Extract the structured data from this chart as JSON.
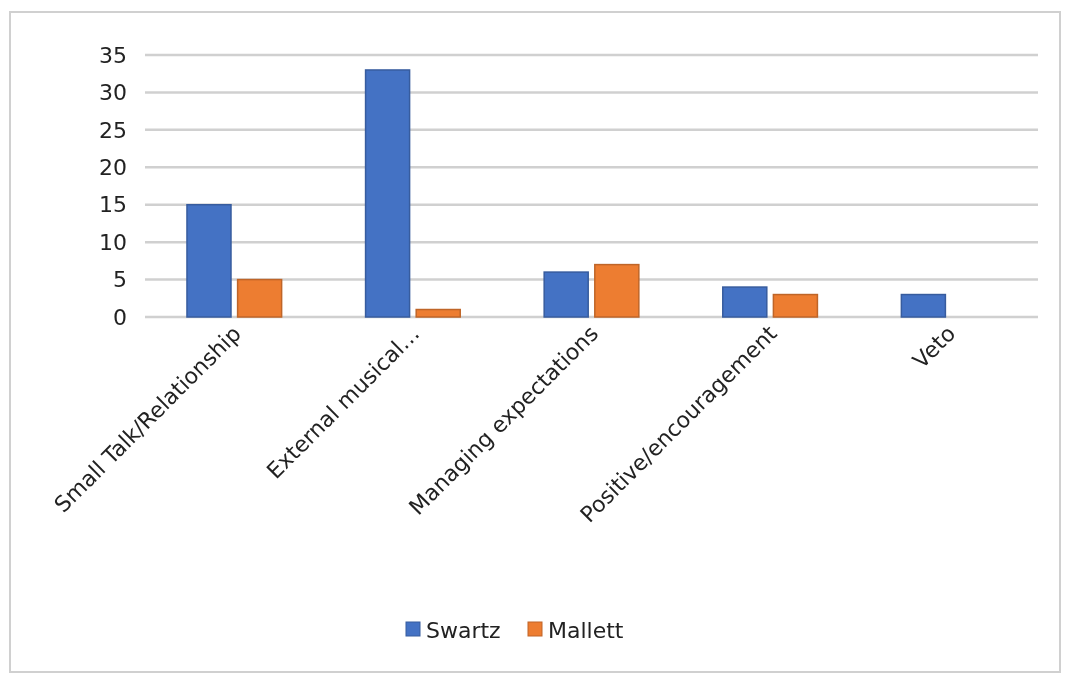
{
  "chart_data": {
    "type": "bar",
    "categories": [
      "Small Talk/Relationship",
      "External  musical…",
      "Managing expectations",
      "Positive/encouragement",
      "Veto"
    ],
    "series": [
      {
        "name": "Swartz",
        "color": "#4472c4",
        "values": [
          15,
          33,
          6,
          4,
          3
        ]
      },
      {
        "name": "Mallett",
        "color": "#ed7d31",
        "values": [
          5,
          1,
          7,
          3,
          null
        ]
      }
    ],
    "ylim": [
      0,
      35
    ],
    "yticks": [
      0,
      5,
      10,
      15,
      20,
      25,
      30,
      35
    ],
    "grid": "y",
    "legend": "bottom"
  }
}
